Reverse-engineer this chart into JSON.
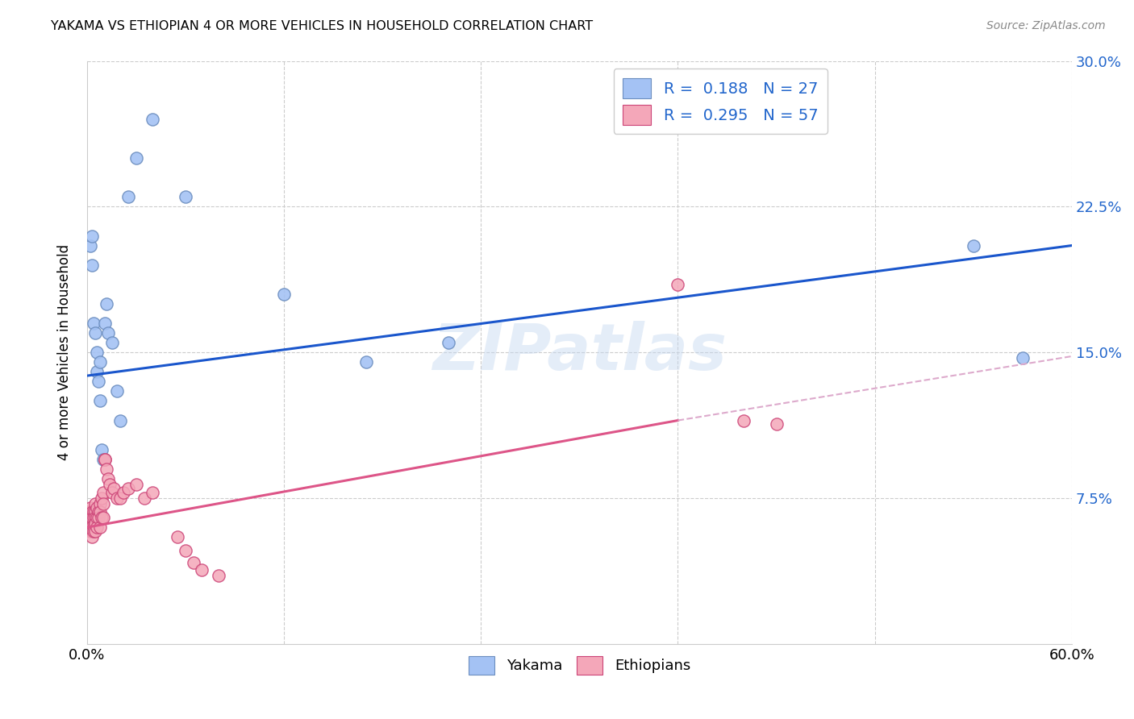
{
  "title": "YAKAMA VS ETHIOPIAN 4 OR MORE VEHICLES IN HOUSEHOLD CORRELATION CHART",
  "source": "Source: ZipAtlas.com",
  "ylabel": "4 or more Vehicles in Household",
  "xlim": [
    0.0,
    0.6
  ],
  "ylim": [
    0.0,
    0.3
  ],
  "legend_yakama_r": "0.188",
  "legend_yakama_n": "27",
  "legend_ethiopians_r": "0.295",
  "legend_ethiopians_n": "57",
  "yakama_color": "#a4c2f4",
  "yakama_edge": "#6c8ebf",
  "ethiopians_color": "#f4a7b9",
  "ethiopians_edge": "#cc4477",
  "trendline_yakama_color": "#1a56cc",
  "trendline_ethiopians_color": "#dd5588",
  "trendline_dashed_color": "#ddaacc",
  "watermark": "ZIPatlas",
  "background_color": "#ffffff",
  "trendline_yakama_x0": 0.0,
  "trendline_yakama_y0": 0.138,
  "trendline_yakama_x1": 0.6,
  "trendline_yakama_y1": 0.205,
  "trendline_ethiopians_x0": 0.0,
  "trendline_ethiopians_y0": 0.06,
  "trendline_ethiopians_solid_x1": 0.36,
  "trendline_ethiopians_solid_y1": 0.115,
  "trendline_ethiopians_x1": 0.6,
  "trendline_ethiopians_y1": 0.148,
  "yakama_x": [
    0.002,
    0.003,
    0.003,
    0.004,
    0.005,
    0.006,
    0.006,
    0.007,
    0.008,
    0.008,
    0.009,
    0.01,
    0.011,
    0.012,
    0.013,
    0.015,
    0.018,
    0.02,
    0.025,
    0.03,
    0.04,
    0.06,
    0.12,
    0.17,
    0.22,
    0.54,
    0.57
  ],
  "yakama_y": [
    0.205,
    0.21,
    0.195,
    0.165,
    0.16,
    0.15,
    0.14,
    0.135,
    0.125,
    0.145,
    0.1,
    0.095,
    0.165,
    0.175,
    0.16,
    0.155,
    0.13,
    0.115,
    0.23,
    0.25,
    0.27,
    0.23,
    0.18,
    0.145,
    0.155,
    0.205,
    0.147
  ],
  "ethiopians_x": [
    0.001,
    0.001,
    0.001,
    0.002,
    0.002,
    0.002,
    0.002,
    0.002,
    0.003,
    0.003,
    0.003,
    0.003,
    0.003,
    0.004,
    0.004,
    0.004,
    0.004,
    0.005,
    0.005,
    0.005,
    0.005,
    0.005,
    0.006,
    0.006,
    0.006,
    0.007,
    0.007,
    0.008,
    0.008,
    0.008,
    0.009,
    0.009,
    0.01,
    0.01,
    0.01,
    0.011,
    0.011,
    0.012,
    0.013,
    0.014,
    0.015,
    0.016,
    0.018,
    0.02,
    0.022,
    0.025,
    0.03,
    0.035,
    0.04,
    0.055,
    0.06,
    0.065,
    0.07,
    0.08,
    0.36,
    0.4,
    0.42
  ],
  "ethiopians_y": [
    0.068,
    0.065,
    0.062,
    0.07,
    0.065,
    0.062,
    0.06,
    0.058,
    0.068,
    0.065,
    0.06,
    0.058,
    0.055,
    0.068,
    0.065,
    0.06,
    0.058,
    0.072,
    0.068,
    0.065,
    0.062,
    0.058,
    0.07,
    0.065,
    0.06,
    0.068,
    0.065,
    0.072,
    0.068,
    0.06,
    0.075,
    0.065,
    0.078,
    0.072,
    0.065,
    0.095,
    0.095,
    0.09,
    0.085,
    0.082,
    0.078,
    0.08,
    0.075,
    0.075,
    0.078,
    0.08,
    0.082,
    0.075,
    0.078,
    0.055,
    0.048,
    0.042,
    0.038,
    0.035,
    0.185,
    0.115,
    0.113
  ]
}
